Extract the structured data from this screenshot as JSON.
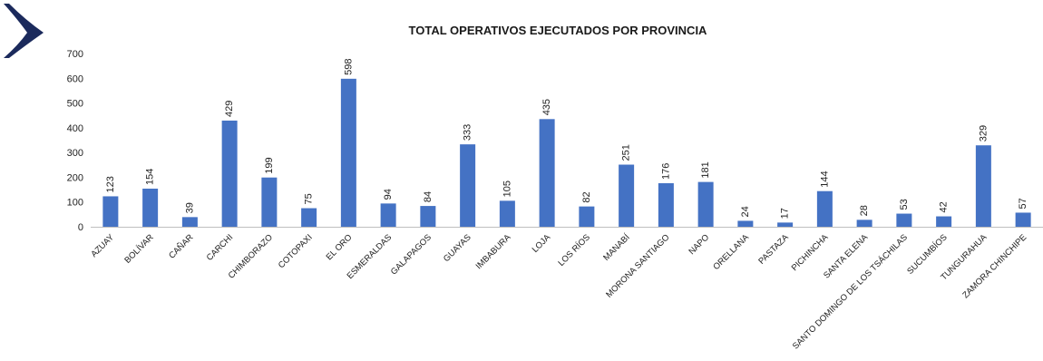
{
  "chart_data": {
    "type": "bar",
    "title": "TOTAL OPERATIVOS EJECUTADOS POR PROVINCIA",
    "xlabel": "",
    "ylabel": "",
    "ylim": [
      0,
      700
    ],
    "yticks": [
      0,
      100,
      200,
      300,
      400,
      500,
      600,
      700
    ],
    "grid": false,
    "bar_color": "#4472C4",
    "categories": [
      "AZUAY",
      "BOLÍVAR",
      "CAÑAR",
      "CARCHI",
      "CHIMBORAZO",
      "COTOPAXI",
      "EL ORO",
      "ESMERALDAS",
      "GALAPAGOS",
      "GUAYAS",
      "IMBABURA",
      "LOJA",
      "LOS RÍOS",
      "MANABÍ",
      "MORONA SANTIAGO",
      "NAPO",
      "ORELLANA",
      "PASTAZA",
      "PICHINCHA",
      "SANTA ELENA",
      "SANTO DOMINGO DE LOS TSÁCHILAS",
      "SUCUMBÍOS",
      "TUNGURAHUA",
      "ZAMORA CHINCHIPE"
    ],
    "values": [
      123,
      154,
      39,
      429,
      199,
      75,
      598,
      94,
      84,
      333,
      105,
      435,
      82,
      251,
      176,
      181,
      24,
      17,
      144,
      28,
      53,
      42,
      329,
      57
    ]
  },
  "logo": {
    "icon": "chevron-right-icon",
    "color": "#1b2a5c"
  }
}
